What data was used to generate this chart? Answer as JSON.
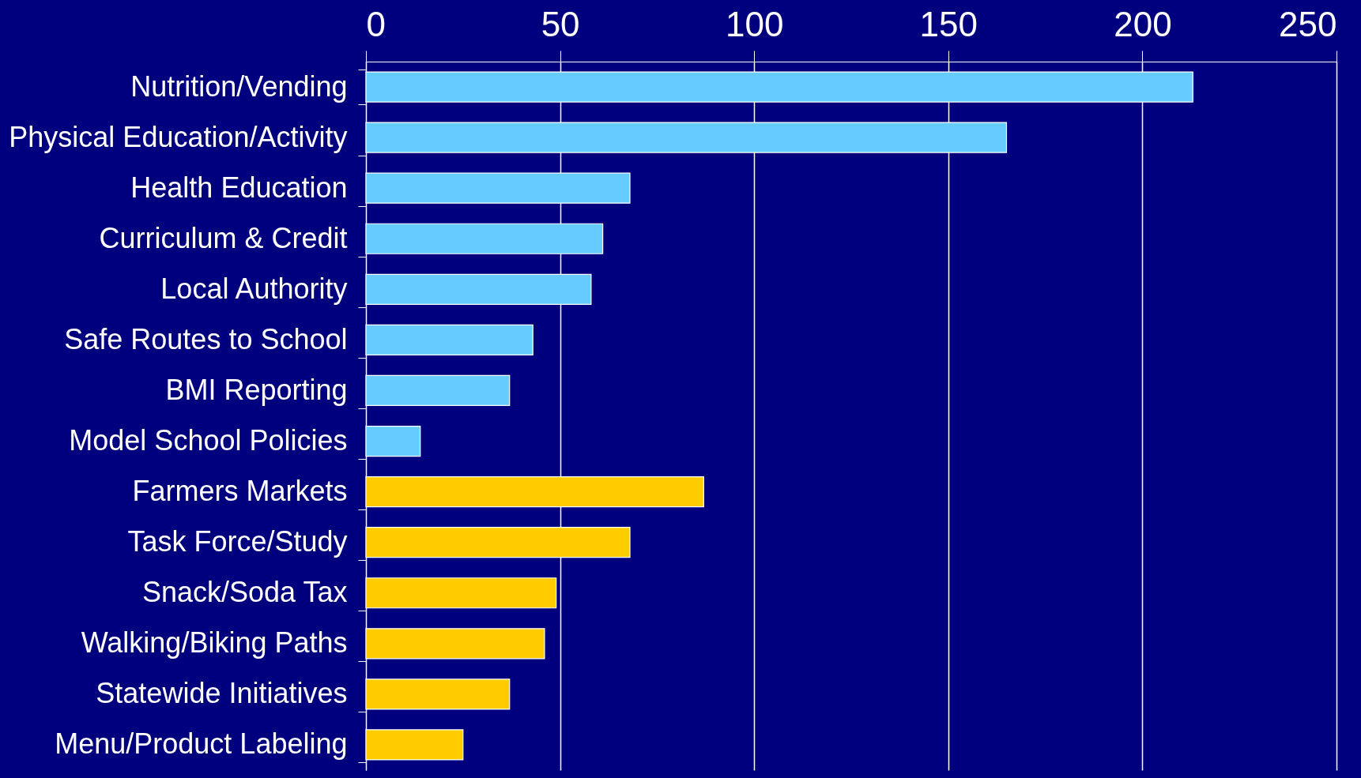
{
  "chart_data": {
    "type": "bar",
    "orientation": "horizontal",
    "categories": [
      "Nutrition/Vending",
      "Physical Education/Activity",
      "Health Education",
      "Curriculum & Credit",
      "Local Authority",
      "Safe Routes to School",
      "BMI Reporting",
      "Model School Policies",
      "Farmers Markets",
      "Task Force/Study",
      "Snack/Soda Tax",
      "Walking/Biking Paths",
      "Statewide Initiatives",
      "Menu/Product Labeling"
    ],
    "values": [
      213,
      165,
      68,
      61,
      58,
      43,
      37,
      14,
      87,
      68,
      49,
      46,
      37,
      25
    ],
    "colors": [
      "#66ccff",
      "#66ccff",
      "#66ccff",
      "#66ccff",
      "#66ccff",
      "#66ccff",
      "#66ccff",
      "#66ccff",
      "#ffcc00",
      "#ffcc00",
      "#ffcc00",
      "#ffcc00",
      "#ffcc00",
      "#ffcc00"
    ],
    "xlim": [
      0,
      250
    ],
    "xticks": [
      0,
      50,
      100,
      150,
      200,
      250
    ],
    "grid": "x",
    "legend": false
  }
}
